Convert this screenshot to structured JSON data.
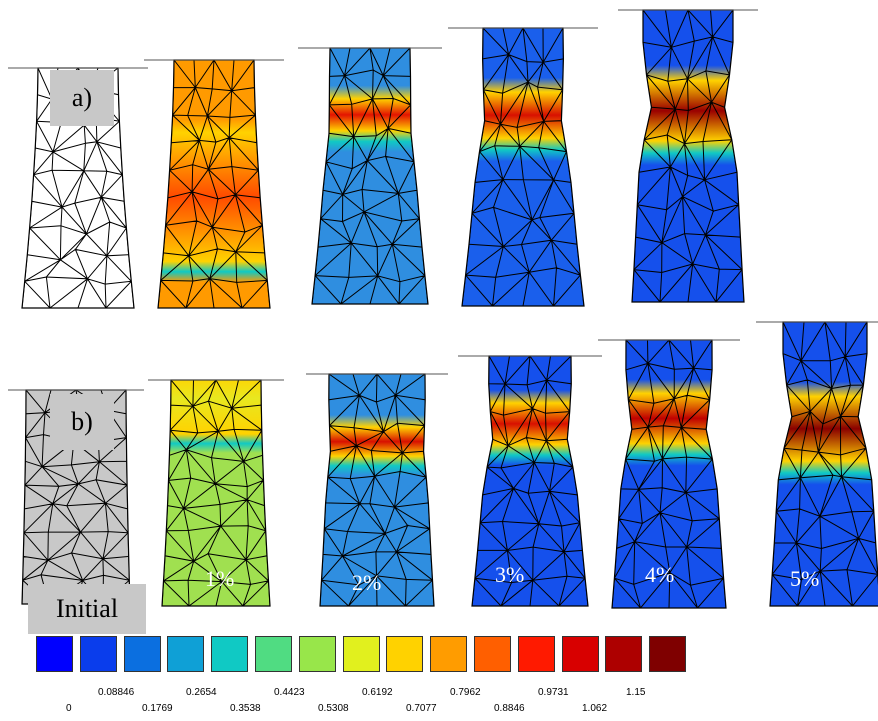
{
  "labels": {
    "row_a": "a)",
    "row_b": "b)",
    "initial": "Initial"
  },
  "strain_labels": [
    "1%",
    "2%",
    "3%",
    "4%",
    "5%"
  ],
  "legend": {
    "colors": [
      "#0000ff",
      "#0a3dec",
      "#0b6fe0",
      "#0fa0d6",
      "#10c9c4",
      "#50dc82",
      "#98e64a",
      "#e1f01e",
      "#ffd200",
      "#ff9c00",
      "#ff5f00",
      "#ff1a00",
      "#d80000",
      "#ad0000",
      "#7f0000"
    ],
    "ticks": [
      "0",
      "0.08846",
      "0.1769",
      "0.2654",
      "0.3538",
      "0.4423",
      "0.5308",
      "0.6192",
      "0.7077",
      "0.7962",
      "0.8846",
      "0.9731",
      "1.062",
      "1.15"
    ]
  },
  "specimens": {
    "row_a": [
      {
        "state": "initial",
        "fill": "none"
      },
      {
        "state": "step1",
        "band_color": "#ff4a00",
        "base_color": "#ff9a00",
        "band_pos": 0.55,
        "band_width": 0.5,
        "neck": 0.0
      },
      {
        "state": "step2",
        "band_color": "#e41400",
        "base_color": "#2f8ee0",
        "band_pos": 0.27,
        "band_width": 0.12,
        "neck": 0.05
      },
      {
        "state": "step3",
        "band_color": "#d81000",
        "base_color": "#1a5fec",
        "band_pos": 0.32,
        "band_width": 0.16,
        "neck": 0.12
      },
      {
        "state": "step4",
        "band_color": "#9a0000",
        "base_color": "#1550ec",
        "band_pos": 0.35,
        "band_width": 0.2,
        "neck": 0.22
      }
    ],
    "row_b": [
      {
        "state": "initial",
        "fill": "gray"
      },
      {
        "state": "1%",
        "band_color": "#e8e820",
        "base_color": "#a0e050",
        "band_pos": 0.1,
        "band_width": 0.3,
        "neck": 0.0
      },
      {
        "state": "2%",
        "band_color": "#d81000",
        "base_color": "#2f8ee0",
        "band_pos": 0.3,
        "band_width": 0.12,
        "neck": 0.06
      },
      {
        "state": "3%",
        "band_color": "#d81000",
        "base_color": "#1550ec",
        "band_pos": 0.28,
        "band_width": 0.16,
        "neck": 0.15
      },
      {
        "state": "4%",
        "band_color": "#c00000",
        "base_color": "#1550ec",
        "band_pos": 0.3,
        "band_width": 0.18,
        "neck": 0.18
      },
      {
        "state": "5%",
        "band_color": "#8a0000",
        "base_color": "#1550ec",
        "band_pos": 0.38,
        "band_width": 0.22,
        "neck": 0.25
      }
    ]
  }
}
